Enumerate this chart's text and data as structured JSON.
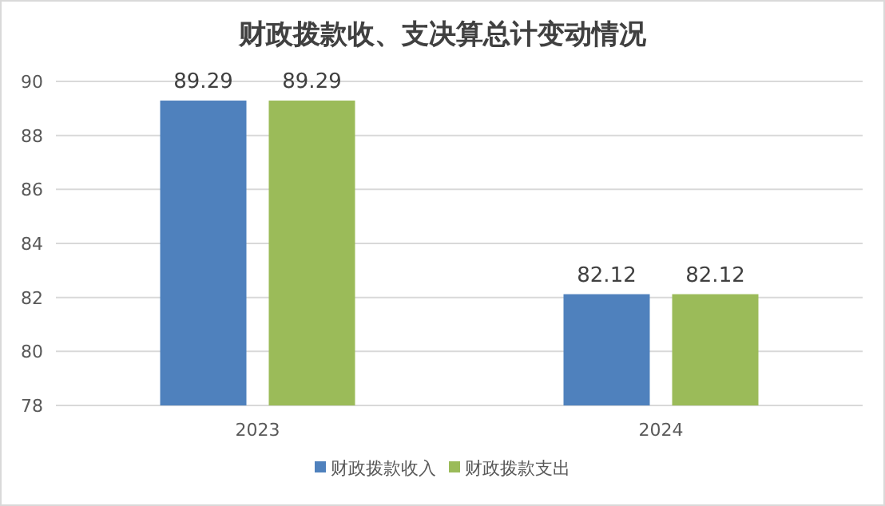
{
  "chart_data": {
    "type": "bar",
    "title": "财政拨款收、支决算总计变动情况",
    "categories": [
      "2023",
      "2024"
    ],
    "series": [
      {
        "name": "财政拨款收入",
        "color": "#4f81bd",
        "values": [
          89.29,
          82.12
        ]
      },
      {
        "name": "财政拨款支出",
        "color": "#9bbb59",
        "values": [
          89.29,
          82.12
        ]
      }
    ],
    "ylim": [
      78,
      90
    ],
    "yticks": [
      78,
      80,
      82,
      84,
      86,
      88,
      90
    ],
    "grid": "y",
    "legend": "bottom",
    "data_labels": true
  }
}
